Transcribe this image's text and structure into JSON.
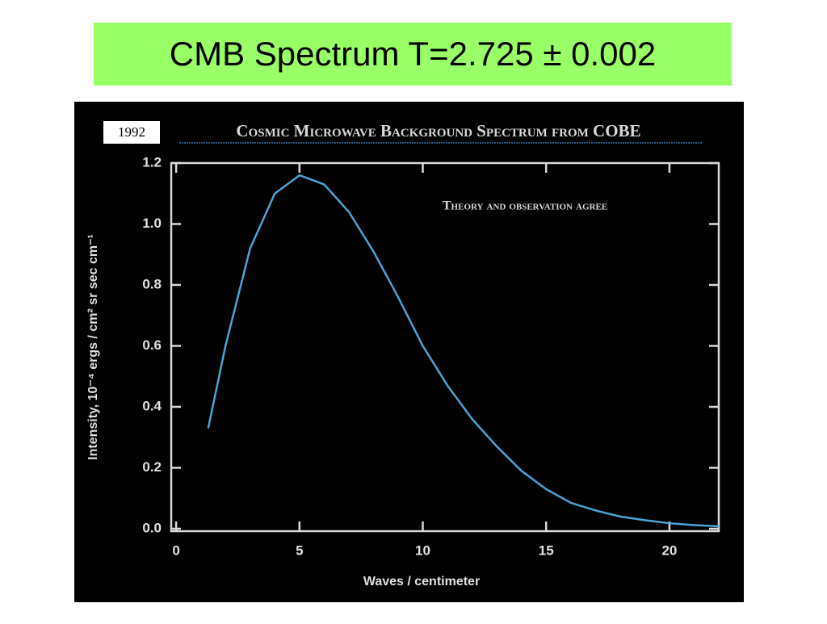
{
  "slide_title": "CMB  Spectrum T=2.725 ± 0.002",
  "badge": "1992",
  "chart_data": {
    "type": "line",
    "title": "Cosmic Microwave Background Spectrum from COBE",
    "annotation": "Theory and observation agree",
    "xlabel": "Waves / centimeter",
    "ylabel": "Intensity, 10⁻⁴ ergs / cm² sr sec cm⁻¹",
    "x": [
      1.3,
      2,
      3,
      4,
      5,
      6,
      7,
      8,
      9,
      10,
      11,
      12,
      13,
      14,
      15,
      16,
      17,
      18,
      19,
      20,
      21,
      22
    ],
    "series": [
      {
        "color": "#4aa3d6",
        "values": [
          0.33,
          0.6,
          0.92,
          1.1,
          1.16,
          1.13,
          1.04,
          0.91,
          0.76,
          0.6,
          0.47,
          0.36,
          0.27,
          0.19,
          0.13,
          0.085,
          0.06,
          0.04,
          0.028,
          0.018,
          0.012,
          0.008
        ]
      }
    ],
    "xlim": [
      -0.2,
      22
    ],
    "ylim": [
      -0.008,
      1.2
    ],
    "xticks": [
      0,
      5,
      10,
      15,
      20
    ],
    "yticks": [
      {
        "value": 0,
        "label": "0.0"
      },
      0.2,
      0.4,
      0.6,
      0.8,
      {
        "value": 1,
        "label": "1.0"
      },
      1.2
    ]
  }
}
